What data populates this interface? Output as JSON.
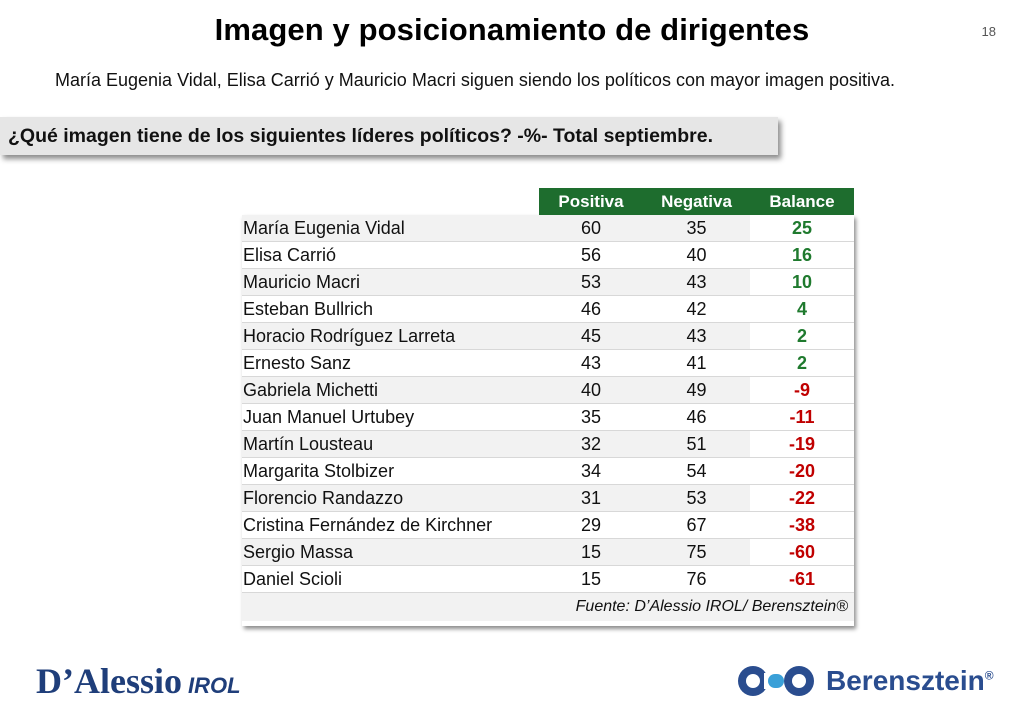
{
  "slide": {
    "title": "Imagen y posicionamiento de dirigentes",
    "page_number": "18",
    "subtitle": "María Eugenia Vidal, Elisa Carrió y Mauricio Macri siguen siendo los políticos con mayor imagen positiva.",
    "question": "¿Qué imagen tiene de los siguientes líderes políticos? -%- Total septiembre."
  },
  "table": {
    "headers": [
      "Positiva",
      "Negativa",
      "Balance"
    ],
    "rows": [
      {
        "name": "María Eugenia Vidal",
        "positiva": "60",
        "negativa": "35",
        "balance": "25"
      },
      {
        "name": "Elisa Carrió",
        "positiva": "56",
        "negativa": "40",
        "balance": "16"
      },
      {
        "name": "Mauricio Macri",
        "positiva": "53",
        "negativa": "43",
        "balance": "10"
      },
      {
        "name": "Esteban Bullrich",
        "positiva": "46",
        "negativa": "42",
        "balance": "4"
      },
      {
        "name": "Horacio Rodríguez Larreta",
        "positiva": "45",
        "negativa": "43",
        "balance": "2"
      },
      {
        "name": "Ernesto Sanz",
        "positiva": "43",
        "negativa": "41",
        "balance": "2"
      },
      {
        "name": "Gabriela Michetti",
        "positiva": "40",
        "negativa": "49",
        "balance": "-9"
      },
      {
        "name": "Juan Manuel Urtubey",
        "positiva": "35",
        "negativa": "46",
        "balance": "-11"
      },
      {
        "name": "Martín Lousteau",
        "positiva": "32",
        "negativa": "51",
        "balance": "-19"
      },
      {
        "name": "Margarita Stolbizer",
        "positiva": "34",
        "negativa": "54",
        "balance": "-20"
      },
      {
        "name": "Florencio Randazzo",
        "positiva": "31",
        "negativa": "53",
        "balance": "-22"
      },
      {
        "name": "Cristina Fernández de Kirchner",
        "positiva": "29",
        "negativa": "67",
        "balance": "-38"
      },
      {
        "name": "Sergio Massa",
        "positiva": "15",
        "negativa": "75",
        "balance": "-60"
      },
      {
        "name": "Daniel Scioli",
        "positiva": "15",
        "negativa": "76",
        "balance": "-61"
      }
    ],
    "source": "Fuente: D’Alessio IROL/ Berensztein®"
  },
  "logos": {
    "left_main": "D’Alessio",
    "left_sub": "IROL",
    "right_name": "Berensztein",
    "right_mark": "®"
  },
  "colors": {
    "header_green": "#1e6d2e",
    "positive_balance": "#1f7a2e",
    "negative_balance": "#c00000",
    "logo_blue": "#1f3e7a"
  }
}
